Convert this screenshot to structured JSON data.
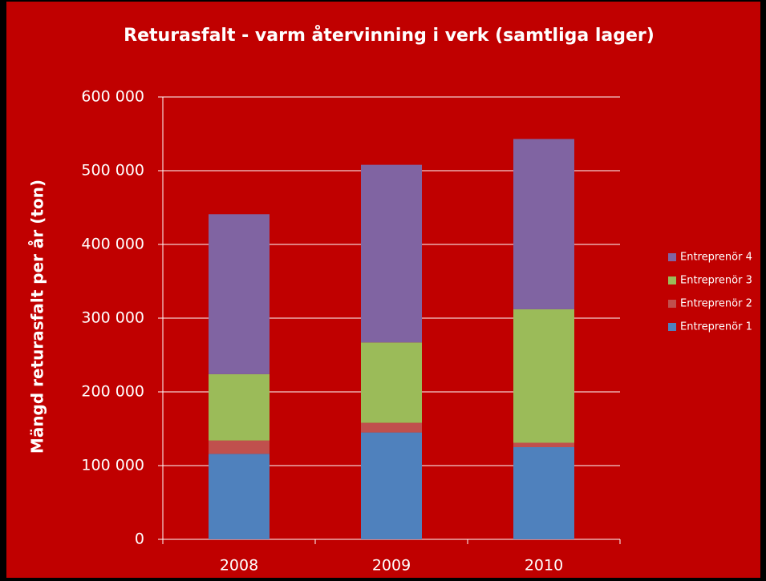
{
  "chart_data": {
    "type": "bar",
    "stacked": true,
    "title": "Returasfalt  -  varm återvinning i verk (samtliga lager)",
    "y_label": "Mängd returasfalt per år (ton)",
    "categories": [
      "2008",
      "2009",
      "2010"
    ],
    "series": [
      {
        "name": "Entreprenör 1",
        "color": "#4f81bd",
        "values": [
          116000,
          145000,
          125000
        ]
      },
      {
        "name": "Entreprenör 2",
        "color": "#c0504d",
        "values": [
          18000,
          13000,
          6000
        ]
      },
      {
        "name": "Entreprenör 3",
        "color": "#9bbb59",
        "values": [
          90000,
          109000,
          181000
        ]
      },
      {
        "name": "Entreprenör 4",
        "color": "#8064a2",
        "values": [
          217000,
          241000,
          231000
        ]
      }
    ],
    "ylim": [
      0,
      600000
    ],
    "yticks": [
      0,
      {
        "value": 100000,
        "label": "100 000"
      },
      {
        "value": 200000,
        "label": "200 000"
      },
      {
        "value": 300000,
        "label": "300 000"
      },
      {
        "value": 400000,
        "label": "400 000"
      },
      {
        "value": 500000,
        "label": "500 000"
      },
      {
        "value": 600000,
        "label": "600 000"
      }
    ],
    "grid": true,
    "legend": "right"
  }
}
